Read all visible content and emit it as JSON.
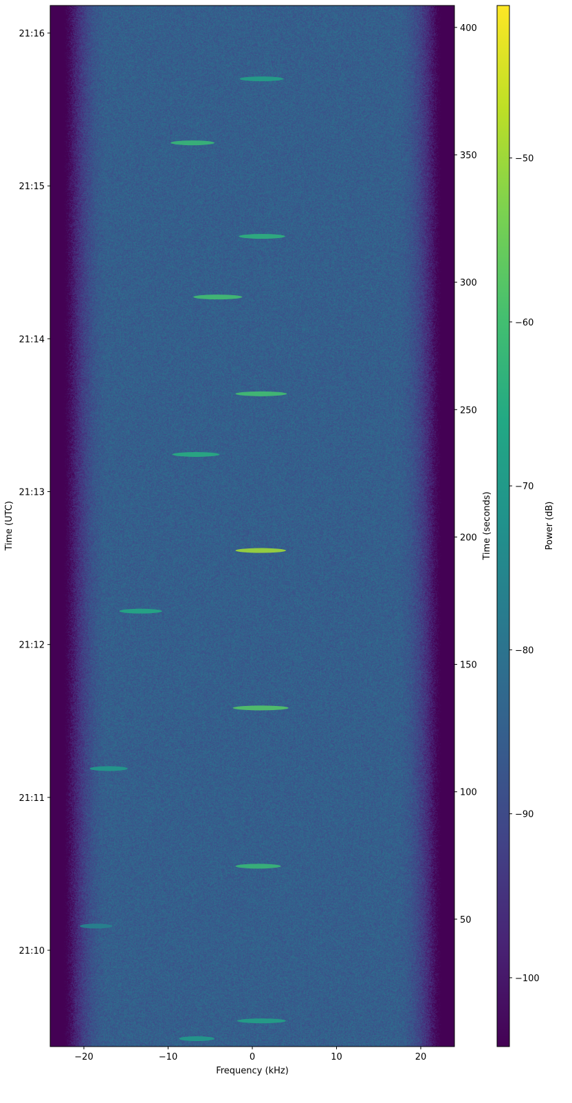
{
  "chart_data": {
    "type": "heatmap",
    "subtype": "spectrogram",
    "xlabel": "Frequency (kHz)",
    "ylabel_left": "Time (UTC)",
    "ylabel_right": "Time (seconds)",
    "colorbar_label": "Power (dB)",
    "colormap": "viridis",
    "xlim": [
      -24,
      24
    ],
    "ylim_seconds": [
      0,
      408.6
    ],
    "clim_db": [
      -104.2,
      -40.7
    ],
    "background_power_db": -85,
    "x_ticks": [
      -20,
      -10,
      0,
      10,
      20
    ],
    "x_tick_labels": [
      "−20",
      "−10",
      "0",
      "10",
      "20"
    ],
    "right_ticks": [
      50,
      100,
      150,
      200,
      250,
      300,
      350,
      400
    ],
    "right_tick_labels": [
      "50",
      "100",
      "150",
      "200",
      "250",
      "300",
      "350",
      "400"
    ],
    "left_ticks_seconds": [
      37.8,
      97.8,
      157.8,
      217.8,
      277.8,
      337.8,
      397.8
    ],
    "left_tick_labels": [
      "21:10",
      "21:11",
      "21:12",
      "21:13",
      "21:14",
      "21:15",
      "21:16"
    ],
    "colorbar_ticks": [
      -100,
      -90,
      -80,
      -70,
      -60,
      -50
    ],
    "colorbar_tick_labels": [
      "−100",
      "−90",
      "−80",
      "−70",
      "−60",
      "−50"
    ],
    "bursts": [
      {
        "t": 379.8,
        "f_start": -1.5,
        "f_end": 3.7,
        "power_db": -68
      },
      {
        "t": 354.7,
        "f_start": -9.7,
        "f_end": -4.5,
        "power_db": -62
      },
      {
        "t": 318.0,
        "f_start": -1.6,
        "f_end": 3.9,
        "power_db": -64
      },
      {
        "t": 294.2,
        "f_start": -7.0,
        "f_end": -1.2,
        "power_db": -60
      },
      {
        "t": 256.2,
        "f_start": -2.0,
        "f_end": 4.1,
        "power_db": -60
      },
      {
        "t": 232.4,
        "f_start": -9.5,
        "f_end": -3.9,
        "power_db": -65
      },
      {
        "t": 194.7,
        "f_start": -2.0,
        "f_end": 4.0,
        "power_db": -50
      },
      {
        "t": 170.9,
        "f_start": -15.8,
        "f_end": -10.7,
        "power_db": -66
      },
      {
        "t": 132.9,
        "f_start": -2.3,
        "f_end": 4.3,
        "power_db": -58
      },
      {
        "t": 109.1,
        "f_start": -19.3,
        "f_end": -14.8,
        "power_db": -70
      },
      {
        "t": 70.8,
        "f_start": -2.0,
        "f_end": 3.4,
        "power_db": -62
      },
      {
        "t": 47.3,
        "f_start": -20.5,
        "f_end": -16.6,
        "power_db": -76
      },
      {
        "t": 10.1,
        "f_start": -1.8,
        "f_end": 4.0,
        "power_db": -68
      },
      {
        "t": 3.1,
        "f_start": -8.7,
        "f_end": -4.5,
        "power_db": -70
      }
    ]
  }
}
